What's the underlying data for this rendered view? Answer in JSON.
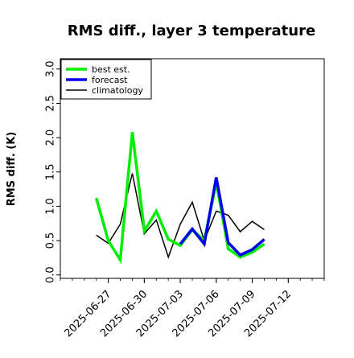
{
  "chart_data": {
    "type": "line",
    "title": "RMS diff., layer 3 temperature",
    "xlabel": "",
    "ylabel": "RMS diff. (K)",
    "ylim": [
      -0.05,
      3.15
    ],
    "xlim": [
      "2025-06-23",
      "2025-07-15"
    ],
    "yticks": [
      "0.0",
      "0.5",
      "1.0",
      "1.5",
      "2.0",
      "2.5",
      "3.0"
    ],
    "xticks": [
      {
        "label": "2025-06-27",
        "date": "2025-06-27",
        "color": "#000000"
      },
      {
        "label": "2025-06-30",
        "date": "2025-06-30",
        "color": "#000000"
      },
      {
        "label": "2025-07-03",
        "date": "2025-07-03",
        "color": "#228b22"
      },
      {
        "label": "2025-07-06",
        "date": "2025-07-06",
        "color": "#000000"
      },
      {
        "label": "2025-07-09",
        "date": "2025-07-09",
        "color": "#000000"
      },
      {
        "label": "2025-07-12",
        "date": "2025-07-12",
        "color": "#000000"
      }
    ],
    "legend_position": "top-left",
    "grid": false,
    "series": [
      {
        "name": "climatology",
        "color": "#000000",
        "width": 1.5,
        "x": [
          "2025-06-26",
          "2025-06-27",
          "2025-06-28",
          "2025-06-29",
          "2025-06-30",
          "2025-07-01",
          "2025-07-02",
          "2025-07-03",
          "2025-07-04",
          "2025-07-05",
          "2025-07-06",
          "2025-07-07",
          "2025-07-08",
          "2025-07-09",
          "2025-07-10"
        ],
        "values": [
          0.58,
          0.46,
          0.74,
          1.48,
          0.6,
          0.8,
          0.26,
          0.74,
          1.06,
          0.5,
          0.93,
          0.87,
          0.63,
          0.78,
          0.66
        ]
      },
      {
        "name": "best est.",
        "color": "#00ee00",
        "width": 3.5,
        "x": [
          "2025-06-26",
          "2025-06-27",
          "2025-06-28",
          "2025-06-29",
          "2025-06-30",
          "2025-07-01",
          "2025-07-02",
          "2025-07-03",
          "2025-07-04",
          "2025-07-05",
          "2025-07-06",
          "2025-07-07",
          "2025-07-08",
          "2025-07-09",
          "2025-07-10"
        ],
        "values": [
          1.12,
          0.5,
          0.22,
          2.08,
          0.64,
          0.93,
          0.52,
          0.43,
          0.66,
          0.5,
          1.35,
          0.38,
          0.26,
          0.33,
          0.45
        ]
      },
      {
        "name": "forecast",
        "color": "#0000ee",
        "width": 3.5,
        "x": [
          "2025-07-03",
          "2025-07-04",
          "2025-07-05",
          "2025-07-06",
          "2025-07-07",
          "2025-07-08",
          "2025-07-09",
          "2025-07-10"
        ],
        "values": [
          0.45,
          0.67,
          0.45,
          1.42,
          0.47,
          0.29,
          0.37,
          0.52
        ]
      }
    ]
  }
}
